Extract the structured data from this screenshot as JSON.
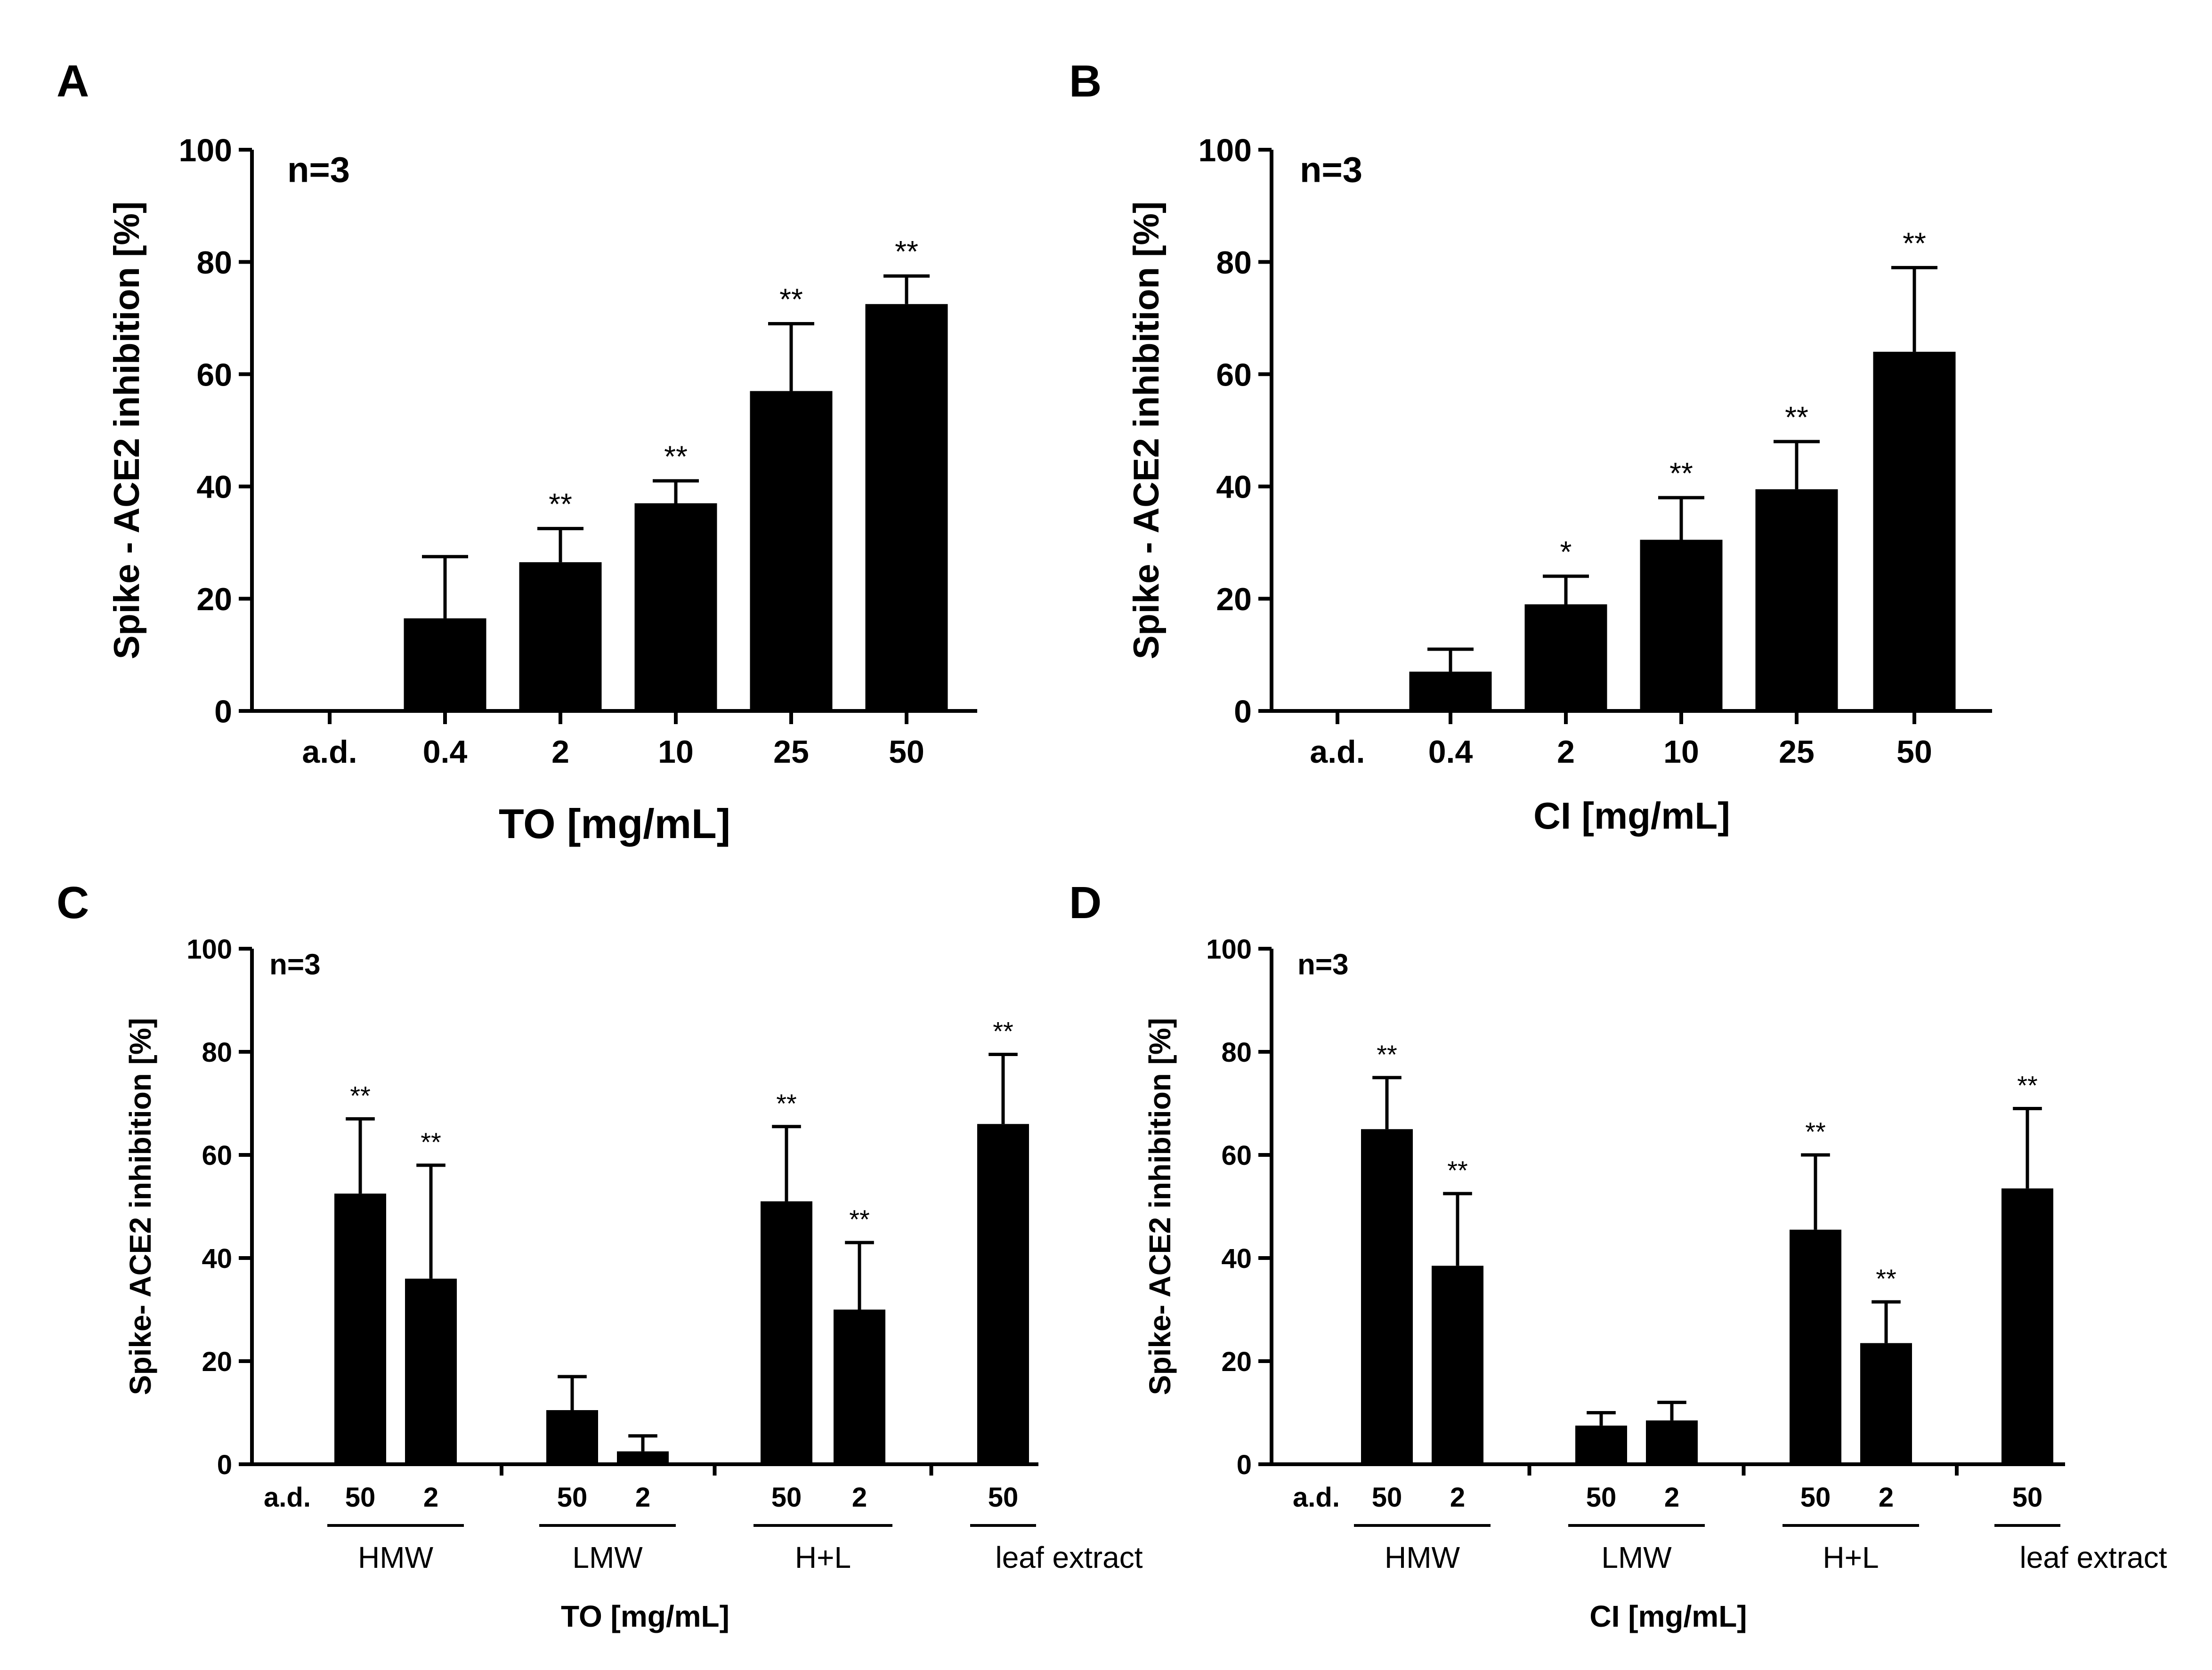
{
  "chart_data": [
    {
      "panel": "A",
      "type": "bar",
      "annotation": "n=3",
      "ylabel": "Spike - ACE2 inhibition [%]",
      "xlabel": "TO [mg/mL]",
      "ylim": [
        0,
        100
      ],
      "yticks": [
        "0",
        "20",
        "40",
        "60",
        "80",
        "100"
      ],
      "categories": [
        "a.d.",
        "0.4",
        "2",
        "10",
        "25",
        "50"
      ],
      "values": [
        0,
        16.5,
        26.5,
        37,
        57,
        72.5
      ],
      "errors": [
        0,
        11,
        6,
        4,
        12,
        5
      ],
      "significance": [
        "",
        "",
        "**",
        "**",
        "**",
        "**"
      ]
    },
    {
      "panel": "B",
      "type": "bar",
      "annotation": "n=3",
      "ylabel": "Spike - ACE2 inhibition [%]",
      "xlabel": "CI [mg/mL]",
      "ylim": [
        0,
        100
      ],
      "yticks": [
        "0",
        "20",
        "40",
        "60",
        "80",
        "100"
      ],
      "categories": [
        "a.d.",
        "0.4",
        "2",
        "10",
        "25",
        "50"
      ],
      "values": [
        0,
        7,
        19,
        30.5,
        39.5,
        64
      ],
      "errors": [
        0,
        4,
        5,
        7.5,
        8.5,
        15
      ],
      "significance": [
        "",
        "",
        "*",
        "**",
        "**",
        "**"
      ]
    },
    {
      "panel": "C",
      "type": "bar",
      "annotation": "n=3",
      "ylabel": "Spike- ACE2 inhibition [%]",
      "xlabel": "TO [mg/mL]",
      "ylim": [
        0,
        100
      ],
      "yticks": [
        "0",
        "20",
        "40",
        "60",
        "80",
        "100"
      ],
      "categories": [
        "a.d.",
        "50",
        "2",
        "50",
        "2",
        "50",
        "2",
        "50"
      ],
      "values": [
        0,
        52.5,
        36,
        10.5,
        2.5,
        51,
        30,
        66
      ],
      "errors": [
        0,
        14.5,
        22,
        6.5,
        3,
        14.5,
        13,
        13.5
      ],
      "significance": [
        "",
        "**",
        "**",
        "",
        "",
        "**",
        "**",
        "**"
      ],
      "groups": [
        {
          "label": "HMW",
          "members": [
            1,
            2
          ]
        },
        {
          "label": "LMW",
          "members": [
            3,
            4
          ]
        },
        {
          "label": "H+L",
          "members": [
            5,
            6
          ]
        },
        {
          "label": "leaf extract",
          "members": [
            7
          ]
        }
      ]
    },
    {
      "panel": "D",
      "type": "bar",
      "annotation": "n=3",
      "ylabel": "Spike- ACE2 inhibition [%]",
      "xlabel": "CI [mg/mL]",
      "ylim": [
        0,
        100
      ],
      "yticks": [
        "0",
        "20",
        "40",
        "60",
        "80",
        "100"
      ],
      "categories": [
        "a.d.",
        "50",
        "2",
        "50",
        "2",
        "50",
        "2",
        "50"
      ],
      "values": [
        0,
        65,
        38.5,
        7.5,
        8.5,
        45.5,
        23.5,
        53.5
      ],
      "errors": [
        0,
        10,
        14,
        2.5,
        3.5,
        14.5,
        8,
        15.5
      ],
      "significance": [
        "",
        "**",
        "**",
        "",
        "",
        "**",
        "**",
        "**"
      ],
      "groups": [
        {
          "label": "HMW",
          "members": [
            1,
            2
          ]
        },
        {
          "label": "LMW",
          "members": [
            3,
            4
          ]
        },
        {
          "label": "H+L",
          "members": [
            5,
            6
          ]
        },
        {
          "label": "leaf extract",
          "members": [
            7
          ]
        }
      ]
    }
  ]
}
